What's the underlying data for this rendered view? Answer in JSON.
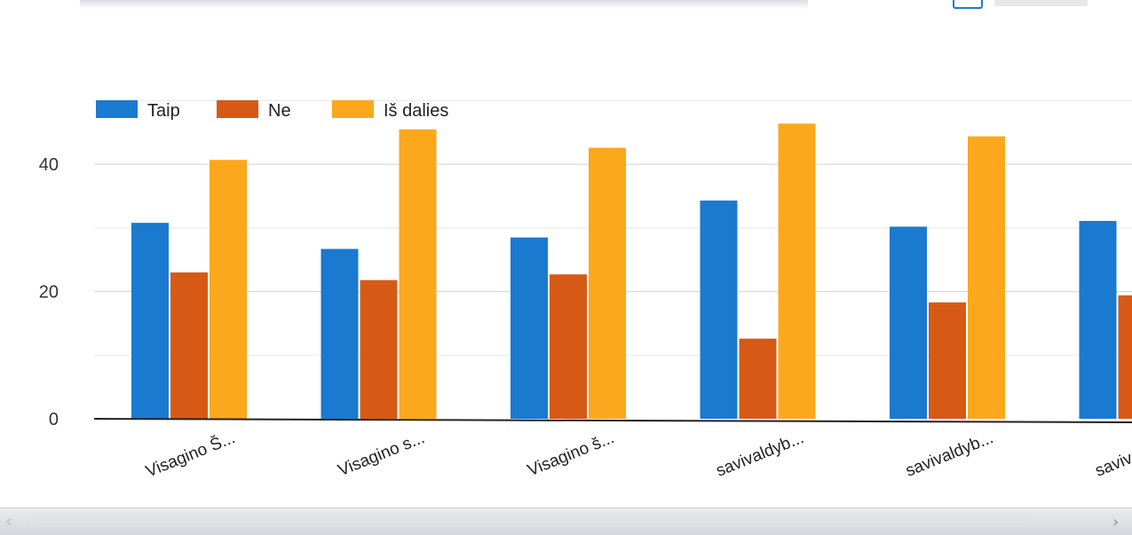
{
  "window": {
    "title": ""
  },
  "icons": {
    "scroll_left": "chevron-left-icon",
    "scroll_right": "chevron-right-icon"
  },
  "chart_data": {
    "type": "bar",
    "title": "",
    "xlabel": "",
    "ylabel": "",
    "ylim": [
      0,
      50
    ],
    "yticks": [
      0,
      20,
      40
    ],
    "grid": true,
    "legend_position": "top-left",
    "categories": [
      "Visagino Š...",
      "Visagino s...",
      "Visagino š...",
      "savivaldyb...",
      "savivaldyb...",
      "savivaldyb..."
    ],
    "series": [
      {
        "name": "Taip",
        "color": "#1a7ad0",
        "values": [
          30.8,
          26.7,
          28.5,
          34.3,
          30.2,
          31.1
        ]
      },
      {
        "name": "Ne",
        "color": "#d65a16",
        "values": [
          23.0,
          21.8,
          22.7,
          12.6,
          18.3,
          19.4
        ]
      },
      {
        "name": "Iš dalies",
        "color": "#fba81d",
        "values": [
          40.7,
          45.5,
          42.6,
          46.4,
          44.4,
          null
        ]
      }
    ]
  }
}
